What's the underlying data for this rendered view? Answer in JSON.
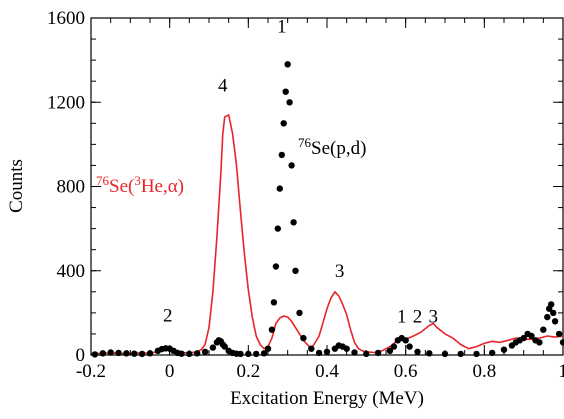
{
  "chart_data": {
    "type": "line",
    "title": "",
    "xlabel": "Excitation Energy (MeV)",
    "ylabel": "Counts",
    "xlim": [
      -0.2,
      1.0
    ],
    "ylim": [
      0,
      1600
    ],
    "grid": false,
    "x_ticks": [
      {
        "value": -0.2,
        "label": "-0.2"
      },
      {
        "value": 0,
        "label": "0"
      },
      {
        "value": 0.2,
        "label": "0.2"
      },
      {
        "value": 0.4,
        "label": "0.4"
      },
      {
        "value": 0.6,
        "label": "0.6"
      },
      {
        "value": 0.8,
        "label": "0.8"
      },
      {
        "value": 1.0,
        "label": "1"
      }
    ],
    "y_ticks": [
      {
        "value": 0,
        "label": "0"
      },
      {
        "value": 400,
        "label": "400"
      },
      {
        "value": 800,
        "label": "800"
      },
      {
        "value": 1200,
        "label": "1200"
      },
      {
        "value": 1600,
        "label": "1600"
      }
    ],
    "series": [
      {
        "name": "76Se(3He,α)",
        "label_parts": {
          "mass": "76",
          "pre": "Se(",
          "sup": "3",
          "post": "He,α)"
        },
        "color": "#e8242a",
        "style": "line",
        "x": [
          -0.2,
          -0.17,
          -0.14,
          -0.11,
          -0.08,
          -0.05,
          -0.03,
          -0.01,
          0.01,
          0.03,
          0.05,
          0.07,
          0.08,
          0.09,
          0.1,
          0.11,
          0.12,
          0.13,
          0.135,
          0.14,
          0.15,
          0.16,
          0.17,
          0.18,
          0.19,
          0.2,
          0.21,
          0.22,
          0.23,
          0.24,
          0.25,
          0.26,
          0.27,
          0.28,
          0.29,
          0.3,
          0.31,
          0.32,
          0.33,
          0.34,
          0.36,
          0.38,
          0.4,
          0.41,
          0.42,
          0.43,
          0.44,
          0.45,
          0.46,
          0.47,
          0.48,
          0.49,
          0.5,
          0.52,
          0.54,
          0.56,
          0.58,
          0.6,
          0.62,
          0.64,
          0.66,
          0.67,
          0.68,
          0.7,
          0.72,
          0.74,
          0.76,
          0.78,
          0.8,
          0.82,
          0.84,
          0.86,
          0.88,
          0.9,
          0.92,
          0.94,
          0.96,
          0.98,
          1.0
        ],
        "y": [
          5,
          8,
          10,
          6,
          9,
          10,
          15,
          30,
          25,
          12,
          10,
          15,
          25,
          50,
          130,
          300,
          560,
          860,
          1050,
          1130,
          1140,
          1050,
          900,
          680,
          480,
          310,
          180,
          90,
          50,
          30,
          40,
          80,
          150,
          175,
          185,
          180,
          160,
          130,
          100,
          70,
          30,
          90,
          220,
          270,
          300,
          280,
          240,
          190,
          120,
          60,
          30,
          20,
          15,
          12,
          20,
          40,
          70,
          75,
          90,
          110,
          140,
          150,
          130,
          100,
          80,
          50,
          30,
          40,
          55,
          65,
          60,
          70,
          80,
          75,
          75,
          80,
          90,
          85,
          90
        ]
      },
      {
        "name": "76Se(p,d)",
        "label_parts": {
          "mass": "76",
          "pre": "Se(p,d)",
          "sup": "",
          "post": ""
        },
        "color": "#000000",
        "style": "dots",
        "x": [
          -0.19,
          -0.17,
          -0.15,
          -0.13,
          -0.11,
          -0.09,
          -0.07,
          -0.05,
          -0.03,
          -0.02,
          -0.01,
          0.0,
          0.01,
          0.02,
          0.03,
          0.05,
          0.07,
          0.09,
          0.11,
          0.12,
          0.125,
          0.13,
          0.135,
          0.14,
          0.15,
          0.16,
          0.17,
          0.18,
          0.2,
          0.22,
          0.24,
          0.25,
          0.26,
          0.265,
          0.27,
          0.275,
          0.28,
          0.285,
          0.29,
          0.295,
          0.3,
          0.305,
          0.31,
          0.315,
          0.32,
          0.33,
          0.34,
          0.36,
          0.38,
          0.4,
          0.42,
          0.43,
          0.44,
          0.45,
          0.47,
          0.5,
          0.53,
          0.56,
          0.57,
          0.58,
          0.59,
          0.6,
          0.61,
          0.63,
          0.66,
          0.7,
          0.74,
          0.78,
          0.82,
          0.85,
          0.87,
          0.88,
          0.89,
          0.9,
          0.91,
          0.92,
          0.93,
          0.94,
          0.95,
          0.96,
          0.965,
          0.97,
          0.975,
          0.98,
          0.99,
          1.0
        ],
        "y": [
          3,
          8,
          12,
          10,
          8,
          6,
          5,
          8,
          20,
          28,
          32,
          30,
          20,
          10,
          6,
          5,
          8,
          15,
          35,
          60,
          70,
          65,
          50,
          40,
          20,
          10,
          6,
          5,
          5,
          5,
          8,
          30,
          120,
          250,
          420,
          600,
          790,
          950,
          1100,
          1250,
          1380,
          1200,
          900,
          630,
          400,
          200,
          80,
          30,
          10,
          15,
          30,
          45,
          40,
          30,
          12,
          5,
          10,
          20,
          40,
          70,
          80,
          70,
          40,
          15,
          8,
          5,
          5,
          5,
          10,
          25,
          45,
          60,
          70,
          80,
          100,
          90,
          70,
          60,
          120,
          180,
          220,
          240,
          200,
          160,
          100,
          60
        ]
      }
    ],
    "annotations": [
      {
        "text": "1",
        "x": 0.285,
        "y": 1530
      },
      {
        "text": "4",
        "x": 0.135,
        "y": 1250
      },
      {
        "text": "3",
        "x": 0.432,
        "y": 370
      },
      {
        "text": "2",
        "x": -0.005,
        "y": 160
      },
      {
        "text": "1",
        "x": 0.59,
        "y": 155
      },
      {
        "text": "2",
        "x": 0.63,
        "y": 155
      },
      {
        "text": "3",
        "x": 0.67,
        "y": 155
      }
    ]
  }
}
